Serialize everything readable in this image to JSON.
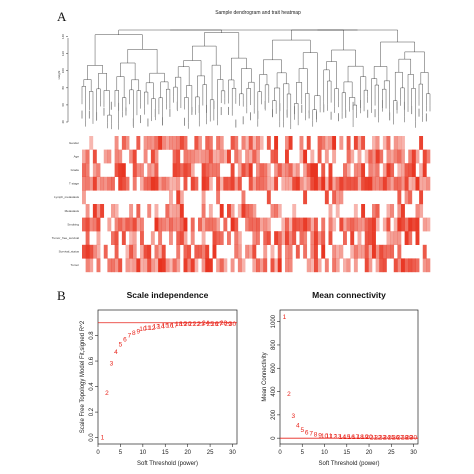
{
  "panel_a": {
    "letter": "A",
    "title": "Sample dendrogram and trait heatmap",
    "ylabel": "Height",
    "y_ticks": [
      40,
      60,
      80,
      100,
      120,
      140
    ],
    "trait_labels": [
      "Gender",
      "Age",
      "Grade",
      "T stage",
      "Lymph_metastasis",
      "Metastasis",
      "Smoking",
      "Tumor_free_survival",
      "Survival_status",
      "Tumor"
    ],
    "heatmap_color_high": "#e8321e",
    "heatmap_color_low": "#ffffff",
    "dendrogram_color": "#222222"
  },
  "panel_b": {
    "letter": "B",
    "chart_data": [
      {
        "type": "scatter",
        "title": "Scale independence",
        "xlabel": "Soft Threshold (power)",
        "ylabel": "Scale Free Topology Model Fit,signed R^2",
        "xlim": [
          0,
          31
        ],
        "ylim": [
          -0.05,
          1.0
        ],
        "x_ticks": [
          0,
          5,
          10,
          15,
          20,
          25,
          30
        ],
        "y_ticks": [
          0.0,
          0.2,
          0.4,
          0.6,
          0.8
        ],
        "hline": 0.9,
        "point_labels": [
          "1",
          "2",
          "3",
          "4",
          "5",
          "6",
          "7",
          "8",
          "9",
          "10",
          "11",
          "12",
          "13",
          "14",
          "15",
          "16",
          "17",
          "18",
          "19",
          "20",
          "21",
          "22",
          "23",
          "24",
          "25",
          "26",
          "27",
          "28",
          "29",
          "30"
        ],
        "x": [
          1,
          2,
          3,
          4,
          5,
          6,
          7,
          8,
          9,
          10,
          11,
          12,
          13,
          14,
          15,
          16,
          17,
          18,
          19,
          20,
          21,
          22,
          23,
          24,
          25,
          26,
          27,
          28,
          29,
          30
        ],
        "y": [
          0.0,
          0.35,
          0.58,
          0.67,
          0.73,
          0.77,
          0.8,
          0.82,
          0.83,
          0.85,
          0.86,
          0.86,
          0.87,
          0.87,
          0.88,
          0.88,
          0.88,
          0.89,
          0.89,
          0.89,
          0.89,
          0.89,
          0.89,
          0.9,
          0.89,
          0.89,
          0.89,
          0.9,
          0.89,
          0.89
        ],
        "color": "#e8231a"
      },
      {
        "type": "scatter",
        "title": "Mean connectivity",
        "xlabel": "Soft Threshold (power)",
        "ylabel": "Mean Connectivity",
        "xlim": [
          0,
          31
        ],
        "ylim": [
          -50,
          1100
        ],
        "x_ticks": [
          0,
          5,
          10,
          15,
          20,
          25,
          30
        ],
        "y_ticks": [
          0,
          200,
          400,
          600,
          800,
          1000
        ],
        "hline": 0,
        "point_labels": [
          "1",
          "2",
          "3",
          "4",
          "5",
          "6",
          "7",
          "8",
          "9",
          "10",
          "11",
          "12",
          "13",
          "14",
          "15",
          "16",
          "17",
          "18",
          "19",
          "20",
          "21",
          "22",
          "23",
          "24",
          "25",
          "26",
          "27",
          "28",
          "29",
          "30"
        ],
        "x": [
          1,
          2,
          3,
          4,
          5,
          6,
          7,
          8,
          9,
          10,
          11,
          12,
          13,
          14,
          15,
          16,
          17,
          18,
          19,
          20,
          21,
          22,
          23,
          24,
          25,
          26,
          27,
          28,
          29,
          30
        ],
        "y": [
          1040,
          380,
          190,
          110,
          70,
          50,
          40,
          30,
          25,
          20,
          18,
          15,
          13,
          12,
          11,
          10,
          9,
          9,
          8,
          8,
          7,
          7,
          7,
          6,
          6,
          6,
          5,
          5,
          5,
          5
        ],
        "color": "#e8231a"
      }
    ]
  }
}
